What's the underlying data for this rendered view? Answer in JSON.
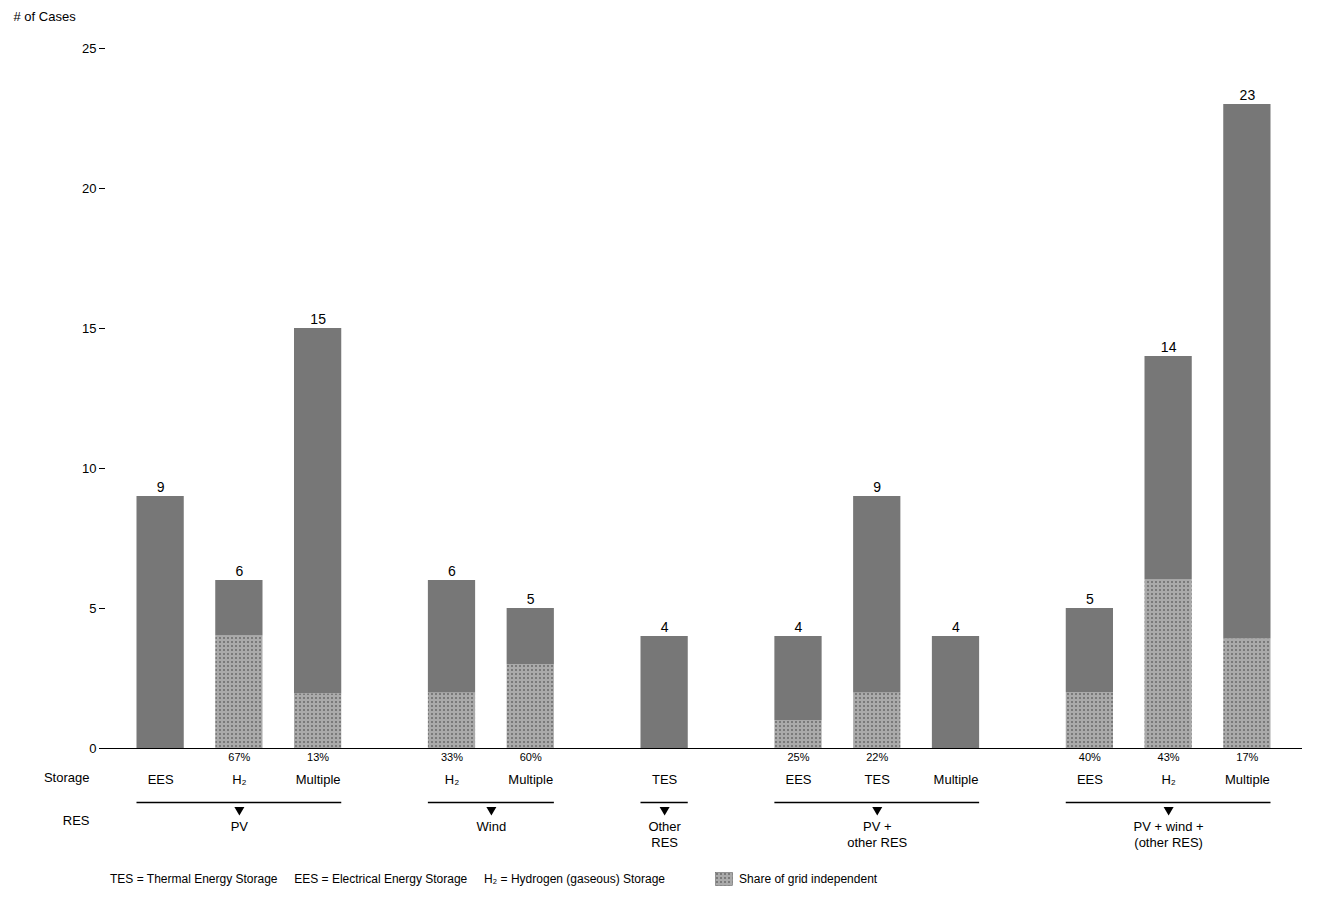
{
  "chart_data": {
    "type": "bar",
    "stacked": true,
    "legend": "bottom",
    "ylabel": "# of Cases",
    "ylim": [
      0,
      25
    ],
    "yticks": [
      0,
      5,
      10,
      15,
      20,
      25
    ],
    "categories": [
      "EES",
      "H₂",
      "Multiple",
      "H₂",
      "Multiple",
      "TES",
      "EES",
      "TES",
      "Multiple",
      "EES",
      "H₂",
      "Multiple"
    ],
    "group_labels": [
      "PV",
      "PV",
      "PV",
      "Wind",
      "Wind",
      "Other\nRES",
      "PV +\nother RES",
      "PV +\nother RES",
      "PV +\nother RES",
      "PV + wind +\n(other RES)",
      "PV + wind +\n(other RES)",
      "PV + wind +\n(other RES)"
    ],
    "series": [
      {
        "name": "Share of grid independent",
        "color": "#aaaaaa",
        "values": [
          0,
          4.02,
          1.95,
          1.98,
          3.0,
          0,
          1.0,
          1.98,
          0,
          2.0,
          6.02,
          3.91
        ]
      },
      {
        "color": "#777777",
        "values": [
          9,
          1.98,
          13.05,
          4.02,
          2.0,
          4,
          3.0,
          7.02,
          4,
          3.0,
          7.98,
          19.09
        ]
      }
    ],
    "totals": [
      9,
      6,
      15,
      6,
      5,
      4,
      4,
      9,
      4,
      5,
      14,
      23
    ],
    "pct_labels": [
      null,
      "67%",
      "13%",
      "33%",
      "60%",
      null,
      "25%",
      "22%",
      null,
      "40%",
      "43%",
      "17%"
    ],
    "x_row_label": "Storage",
    "group_row_label": "RES",
    "caption": "TES = Thermal Energy Storage     EES = Electrical Energy Storage     H₂ = Hydrogen (gaseous) Storage"
  }
}
